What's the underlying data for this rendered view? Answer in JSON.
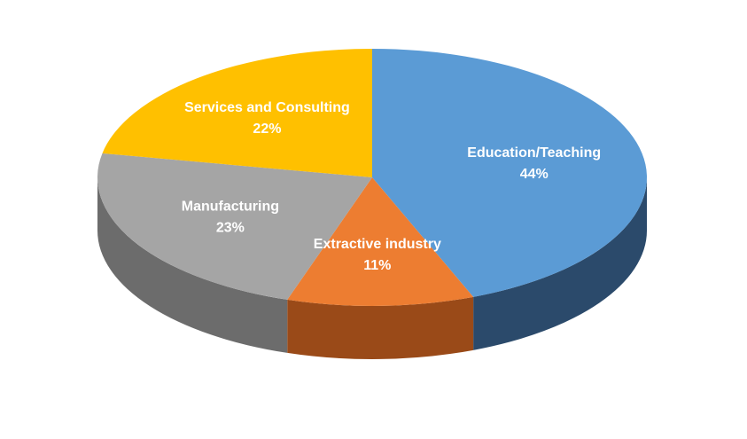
{
  "chart_data": {
    "type": "pie3d",
    "categories": [
      "Education/Teaching",
      "Extractive industry",
      "Manufacturing",
      "Services and Consulting"
    ],
    "values": [
      44,
      11,
      23,
      22
    ],
    "value_labels": [
      "44%",
      "11%",
      "23%",
      "22%"
    ],
    "colors": [
      "#5b9bd5",
      "#ed7d31",
      "#a5a5a5",
      "#ffc000"
    ],
    "side_colors": [
      "#2b4a6b",
      "#9a4a18",
      "#6c6c6c",
      "#a67c00"
    ]
  }
}
